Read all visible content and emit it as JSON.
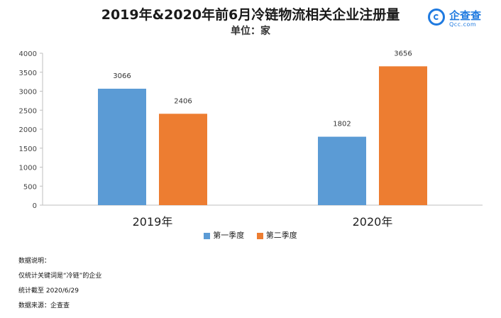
{
  "chart_data": {
    "type": "bar",
    "title": "2019年&2020年前6月冷链物流相关企业注册量",
    "subtitle": "单位：家",
    "categories": [
      "2019年",
      "2020年"
    ],
    "series": [
      {
        "name": "第一季度",
        "values": [
          3066,
          1802
        ],
        "color": "#5b9bd5"
      },
      {
        "name": "第二季度",
        "values": [
          2406,
          3656
        ],
        "color": "#ed7d31"
      }
    ],
    "ylim": [
      0,
      4000
    ],
    "yticks": [
      0,
      500,
      1000,
      1500,
      2000,
      2500,
      3000,
      3500,
      4000
    ],
    "grid": false,
    "legend": "bottom"
  },
  "logo": {
    "name": "企查查",
    "url": "Qcc.com",
    "color": "#1f7ae0"
  },
  "notes": [
    "数据说明：",
    "仅统计关键词是“冷链”的企业",
    "统计截至 2020/6/29",
    "数据来源：企查查"
  ]
}
